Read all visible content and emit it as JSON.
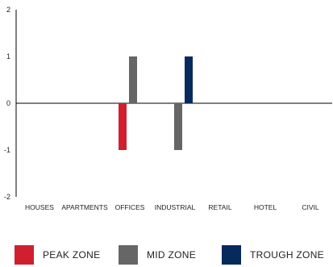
{
  "chart_data": {
    "type": "bar",
    "categories": [
      "HOUSES",
      "APARTMENTS",
      "OFFICES",
      "INDUSTRIAL",
      "RETAIL",
      "HOTEL",
      "CIVIL"
    ],
    "series": [
      {
        "name": "PEAK ZONE",
        "color": "#d0202f",
        "values": [
          0,
          0,
          -1,
          0,
          0,
          0,
          0
        ]
      },
      {
        "name": "MID ZONE",
        "color": "#666666",
        "values": [
          0,
          0,
          1,
          -1,
          0,
          0,
          0
        ]
      },
      {
        "name": "TROUGH ZONE",
        "color": "#062a5b",
        "values": [
          0,
          0,
          0,
          1,
          0,
          0,
          0
        ]
      }
    ],
    "ylim": [
      -2,
      2
    ],
    "yticks": [
      2,
      1,
      0,
      -1,
      -2
    ],
    "grid": false,
    "legend_position": "bottom"
  }
}
